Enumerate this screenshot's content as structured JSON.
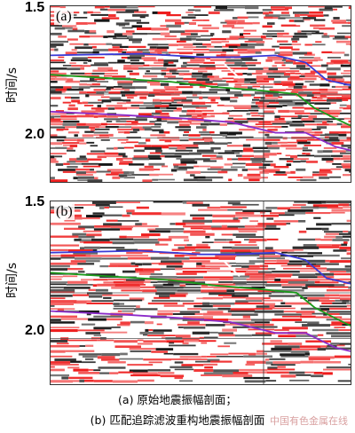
{
  "figure": {
    "axis_label": "时间/s",
    "panels": [
      {
        "letter": "(a)",
        "tick_top": "1.5",
        "tick_mid": "2.0"
      },
      {
        "letter": "(b)",
        "tick_top": "1.5",
        "tick_mid": "2.0"
      }
    ],
    "captions": [
      "(a)  原始地震振幅剖面；",
      "(b)  匹配追踪滤波重构地震振幅剖面"
    ],
    "watermark": "中国有色金属在线"
  },
  "colors": {
    "positive": "#ee1c1c",
    "negative": "#141414",
    "horizon_blue": "#3a3ad6",
    "horizon_green": "#1a9a1a",
    "horizon_purple": "#8b2bc9"
  }
}
